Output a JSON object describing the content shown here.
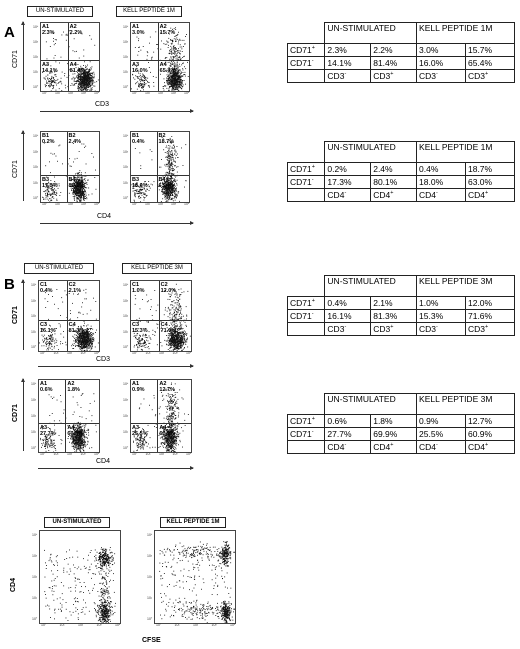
{
  "panel_letters": [
    "A",
    "B"
  ],
  "plots": [
    {
      "id": "a1",
      "header": "UN-STIMULATED",
      "xlabel": "CD3",
      "ylabel": "CD71",
      "q": [
        [
          "A1",
          "2.3%"
        ],
        [
          "A2",
          "2.2%"
        ],
        [
          "A3",
          "14.1%"
        ],
        [
          "A4",
          "81.4%"
        ]
      ],
      "pattern": "cd3"
    },
    {
      "id": "a2",
      "header": "KELL PEPTIDE 1M",
      "q": [
        [
          "A1",
          "3.0%"
        ],
        [
          "A2",
          "15.7%"
        ],
        [
          "A3",
          "16.0%"
        ],
        [
          "A4",
          "65.4%"
        ]
      ],
      "pattern": "cd3stim"
    },
    {
      "id": "a3",
      "header": "",
      "xlabel": "CD4",
      "ylabel": "CD71",
      "q": [
        [
          "B1",
          "0.2%"
        ],
        [
          "B2",
          "2.4%"
        ],
        [
          "B3",
          "17.3%"
        ],
        [
          "B4",
          "80.1%"
        ]
      ],
      "pattern": "cd4"
    },
    {
      "id": "a4",
      "header": "",
      "q": [
        [
          "B1",
          "0.4%"
        ],
        [
          "B2",
          "18.7%"
        ],
        [
          "B3",
          "18.0%"
        ],
        [
          "B4",
          "63.0%"
        ]
      ],
      "pattern": "cd4stim"
    },
    {
      "id": "b1",
      "header": "UN-STIMULATED",
      "xlabel": "CD3",
      "ylabel": "CD71",
      "q": [
        [
          "C1",
          "0.4%"
        ],
        [
          "C2",
          "2.1%"
        ],
        [
          "C3",
          "16.1%"
        ],
        [
          "C4",
          "81.3%"
        ]
      ],
      "pattern": "cd3"
    },
    {
      "id": "b2",
      "header": "KELL PEPTIDE 3M",
      "q": [
        [
          "C1",
          "1.0%"
        ],
        [
          "C2",
          "12.0%"
        ],
        [
          "C3",
          "15.3%"
        ],
        [
          "C4",
          "71.6%"
        ]
      ],
      "pattern": "cd3stim"
    },
    {
      "id": "b3",
      "header": "",
      "xlabel": "CD4",
      "ylabel": "CD71",
      "q": [
        [
          "A1",
          "0.6%"
        ],
        [
          "A2",
          "1.8%"
        ],
        [
          "A3",
          "27.7%"
        ],
        [
          "A4",
          "69.9%"
        ]
      ],
      "pattern": "cd4"
    },
    {
      "id": "b4",
      "header": "",
      "q": [
        [
          "A1",
          "0.9%"
        ],
        [
          "A2",
          "12.7%"
        ],
        [
          "A3",
          "25.5%"
        ],
        [
          "A4",
          "60.9%"
        ]
      ],
      "pattern": "cd4stim"
    },
    {
      "id": "c1",
      "header": "UN-STIMULATED",
      "xlabel": "CFSE",
      "ylabel": "CD4",
      "q": [],
      "pattern": "cfse"
    },
    {
      "id": "c2",
      "header": "KELL PEPTIDE 1M",
      "q": [],
      "pattern": "cfsestim"
    }
  ],
  "tick_labels": [
    "10°",
    "10¹",
    "10²",
    "10³",
    "10⁴"
  ],
  "tables": [
    {
      "id": "t1",
      "col1": "UN-STIMULATED",
      "col2": "KELL PEPTIDE 1M",
      "rows": [
        {
          "label": "CD71",
          "sup": "+",
          "vals": [
            "2.3%",
            "2.2%",
            "3.0%",
            "15.7%"
          ]
        },
        {
          "label": "CD71",
          "sup": "-",
          "vals": [
            "14.1%",
            "81.4%",
            "16.0%",
            "65.4%"
          ]
        }
      ],
      "foot": [
        [
          "CD3",
          "-"
        ],
        [
          "CD3",
          "+"
        ],
        [
          "CD3",
          "-"
        ],
        [
          "CD3",
          "+"
        ]
      ]
    },
    {
      "id": "t2",
      "col1": "UN-STIMULATED",
      "col2": "KELL PEPTIDE 1M",
      "rows": [
        {
          "label": "CD71",
          "sup": "+",
          "vals": [
            "0.2%",
            "2.4%",
            "0.4%",
            "18.7%"
          ]
        },
        {
          "label": "CD71",
          "sup": "-",
          "vals": [
            "17.3%",
            "80.1%",
            "18.0%",
            "63.0%"
          ]
        }
      ],
      "foot": [
        [
          "CD4",
          "-"
        ],
        [
          "CD4",
          "+"
        ],
        [
          "CD4",
          "-"
        ],
        [
          "CD4",
          "+"
        ]
      ]
    },
    {
      "id": "t3",
      "col1": "UN-STIMULATED",
      "col2": "KELL PEPTIDE 3M",
      "rows": [
        {
          "label": "CD71",
          "sup": "+",
          "vals": [
            "0.4%",
            "2.1%",
            "1.0%",
            "12.0%"
          ]
        },
        {
          "label": "CD71",
          "sup": "-",
          "vals": [
            "16.1%",
            "81.3%",
            "15.3%",
            "71.6%"
          ]
        }
      ],
      "foot": [
        [
          "CD3",
          "-"
        ],
        [
          "CD3",
          "+"
        ],
        [
          "CD3",
          "-"
        ],
        [
          "CD3",
          "+"
        ]
      ]
    },
    {
      "id": "t4",
      "col1": "UN-STIMULATED",
      "col2": "KELL PEPTIDE 3M",
      "rows": [
        {
          "label": "CD71",
          "sup": "+",
          "vals": [
            "0.6%",
            "1.8%",
            "0.9%",
            "12.7%"
          ]
        },
        {
          "label": "CD71",
          "sup": "-",
          "vals": [
            "27.7%",
            "69.9%",
            "25.5%",
            "60.9%"
          ]
        }
      ],
      "foot": [
        [
          "CD4",
          "-"
        ],
        [
          "CD4",
          "+"
        ],
        [
          "CD4",
          "-"
        ],
        [
          "CD4",
          "+"
        ]
      ]
    }
  ]
}
